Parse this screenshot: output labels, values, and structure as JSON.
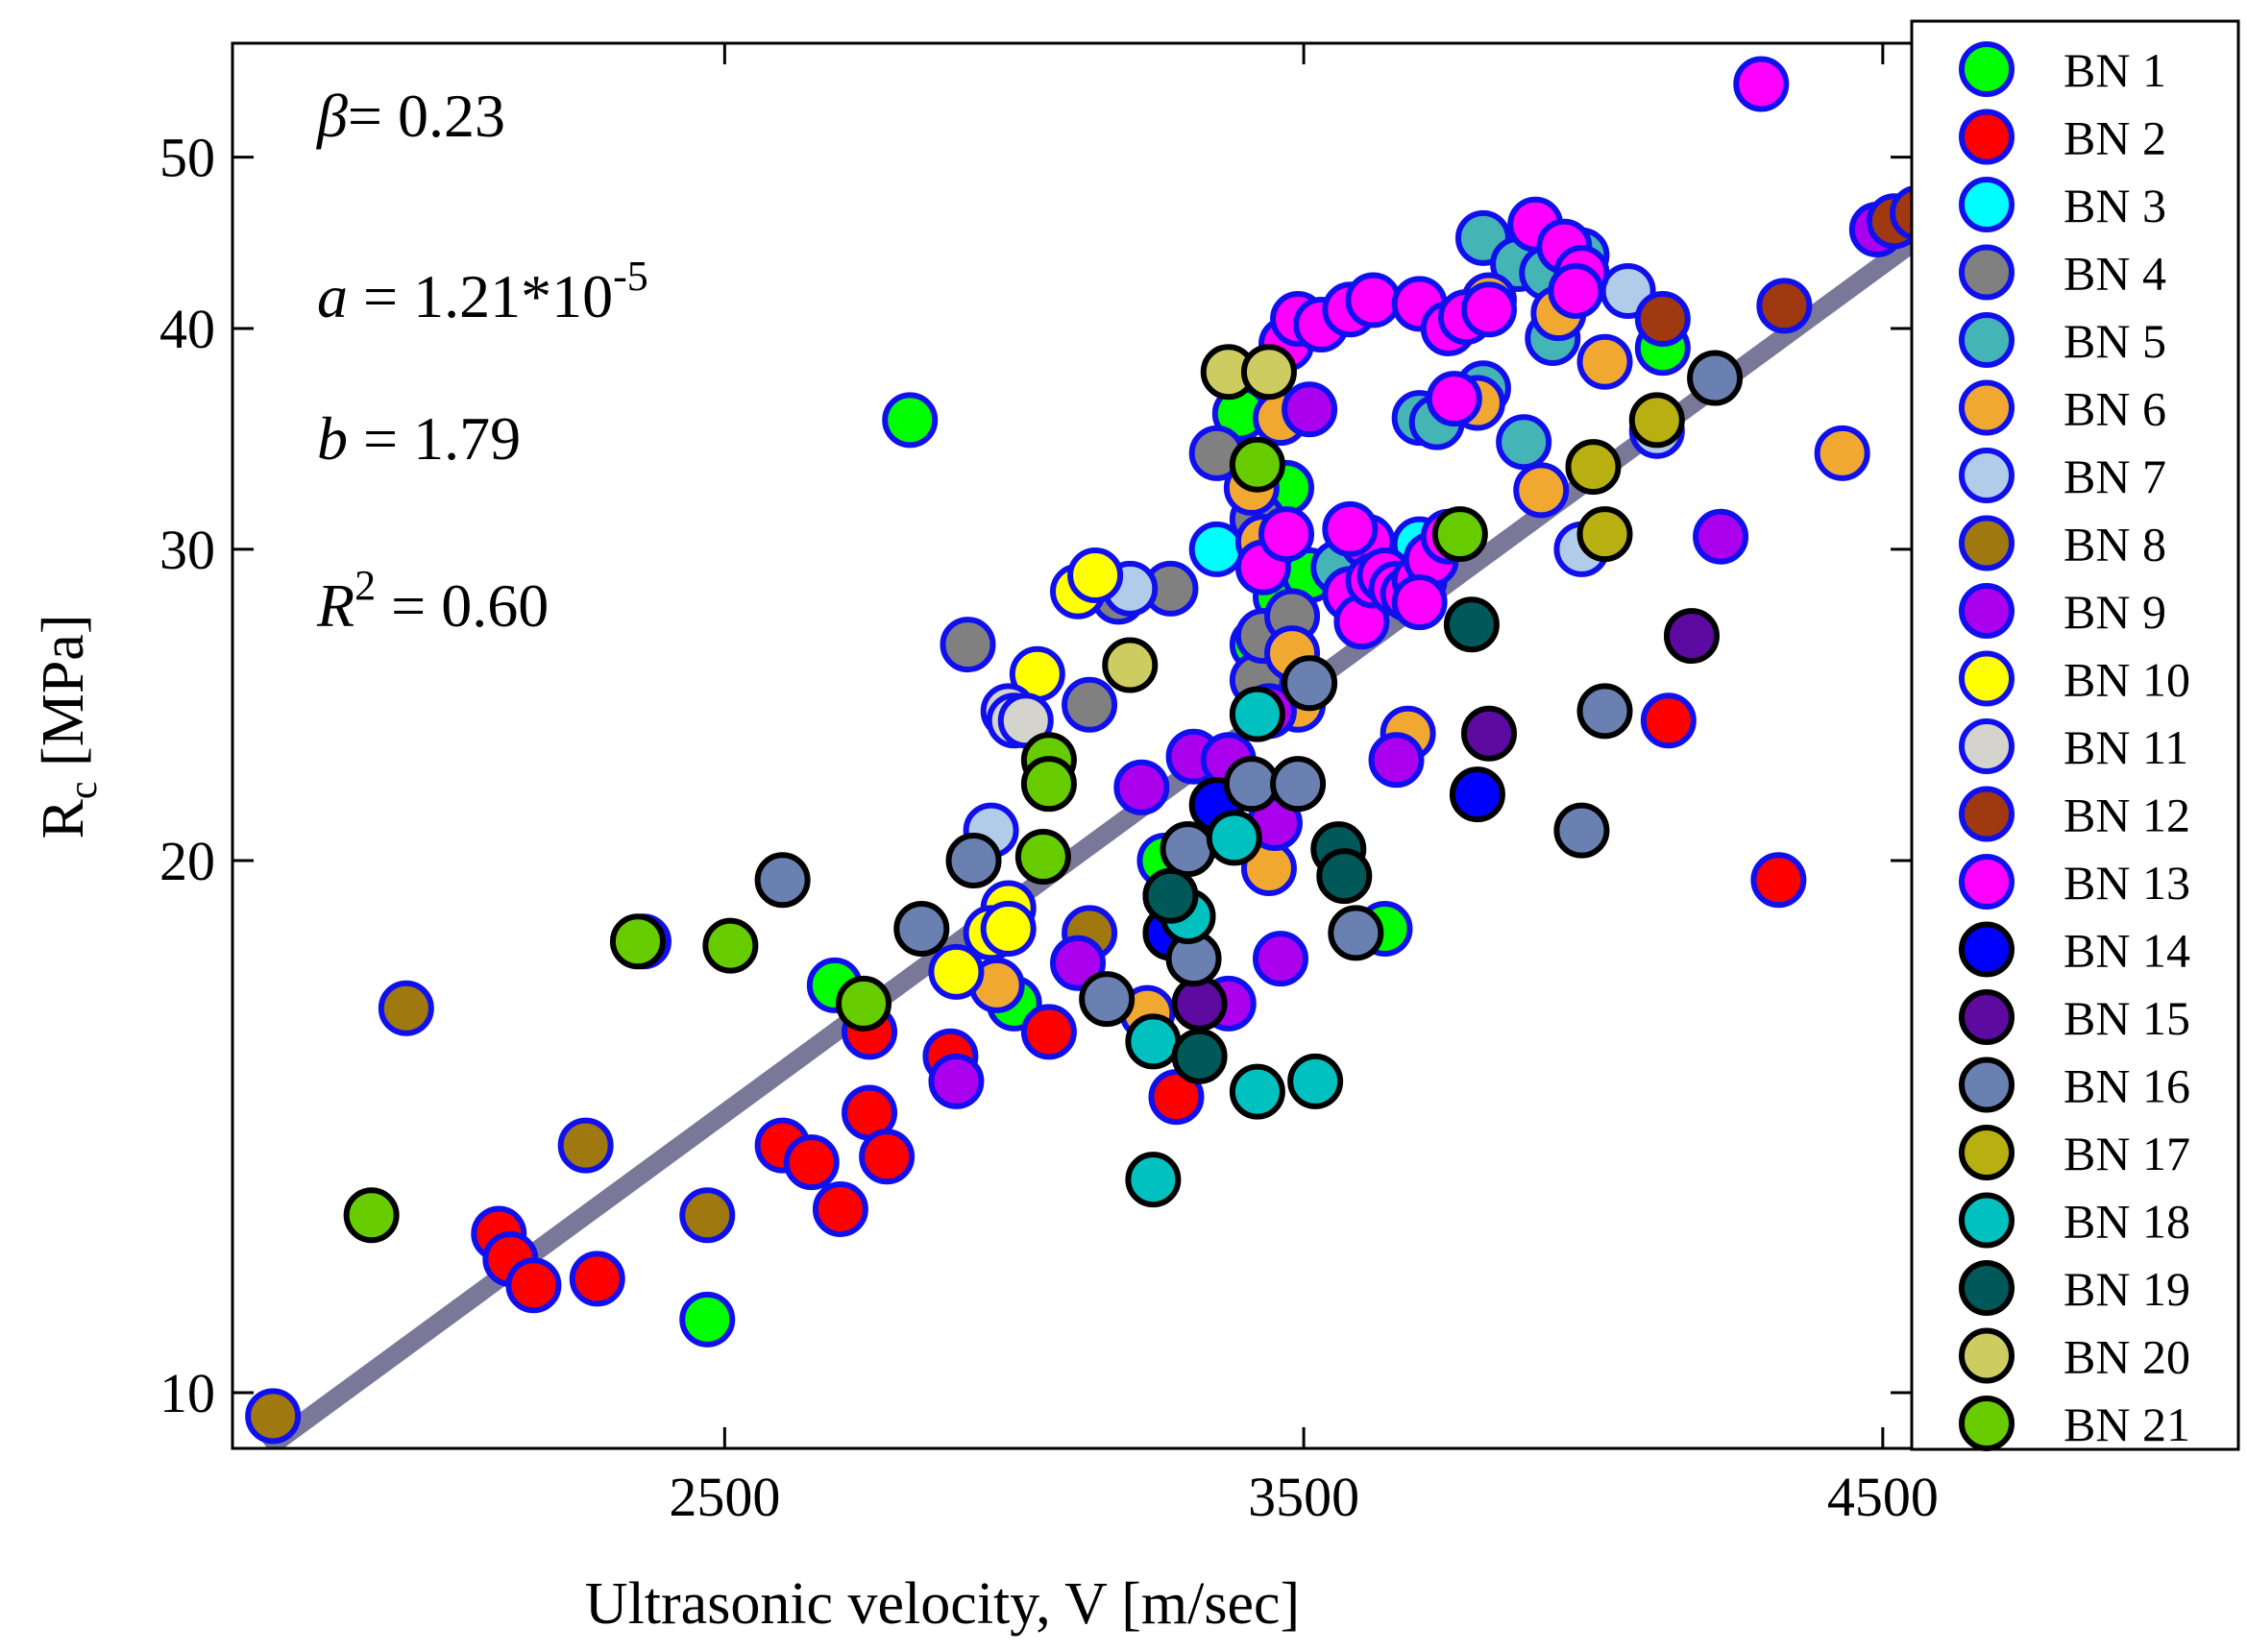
{
  "chart_data": {
    "type": "scatter",
    "xlabel": "Ultrasonic velocity, V [m/sec]",
    "ylabel": {
      "main": "R",
      "sub": "c",
      "unit": " [MPa]"
    },
    "xlim": [
      1650,
      4550
    ],
    "ylim": [
      9.3,
      58
    ],
    "yscale": "log",
    "xticks": [
      2500,
      3500,
      4500
    ],
    "yticks": [
      10,
      20,
      30,
      40,
      50
    ],
    "annotations": {
      "beta": {
        "sym": "β",
        "text": "= 0.23"
      },
      "a": {
        "sym": "a",
        "text": " = 1.21*10",
        "exp": "-5"
      },
      "b": {
        "sym": "b",
        "text": " = 1.79"
      },
      "r2": {
        "sym": "R",
        "exp": "2",
        "text": " = 0.60"
      }
    },
    "fit": {
      "name": "power-law fit",
      "x": [
        1710,
        4550
      ],
      "y": [
        9.3,
        44.7
      ],
      "color": "#7a7898"
    },
    "legend_position": "right, outside plot",
    "series": [
      {
        "name": "BN 1",
        "color": "#00ff00",
        "edge": "#1010ee",
        "points": [
          [
            2820,
            35.5
          ],
          [
            2470,
            11
          ],
          [
            3390,
            35.8
          ],
          [
            2690,
            17
          ],
          [
            3000,
            16.6
          ],
          [
            3260,
            20
          ],
          [
            3300,
            20.3
          ],
          [
            3270,
            19.1
          ],
          [
            3420,
            26.5
          ],
          [
            3460,
            28.2
          ],
          [
            3470,
            32.5
          ],
          [
            3640,
            18.3
          ],
          [
            4120,
            39
          ],
          [
            3510,
            29
          ]
        ]
      },
      {
        "name": "BN 2",
        "color": "#ff0000",
        "edge": "#1010ee",
        "points": [
          [
            2110,
            12.3
          ],
          [
            2130,
            11.9
          ],
          [
            2170,
            11.5
          ],
          [
            2280,
            11.6
          ],
          [
            2600,
            13.8
          ],
          [
            2650,
            13.5
          ],
          [
            2700,
            12.7
          ],
          [
            2750,
            14.4
          ],
          [
            2780,
            13.6
          ],
          [
            2750,
            16
          ],
          [
            2890,
            15.5
          ],
          [
            3060,
            16
          ],
          [
            3280,
            14.7
          ],
          [
            4130,
            24
          ],
          [
            4320,
            19.5
          ]
        ]
      },
      {
        "name": "BN 3",
        "color": "#00ffff",
        "edge": "#1010ee",
        "points": [
          [
            3350,
            30
          ],
          [
            3700,
            30.2
          ]
        ]
      },
      {
        "name": "BN 4",
        "color": "#808080",
        "edge": "#1010ee",
        "points": [
          [
            2920,
            26.5
          ],
          [
            3180,
            28.2
          ],
          [
            3270,
            28.5
          ],
          [
            3350,
            34
          ],
          [
            3420,
            25.3
          ],
          [
            3430,
            26.8
          ],
          [
            3130,
            24.5
          ],
          [
            3420,
            31.2
          ],
          [
            3480,
            27.5
          ]
        ]
      },
      {
        "name": "BN 5",
        "color": "#44b4b4",
        "edge": "#1010ee",
        "points": [
          [
            3810,
            45
          ],
          [
            3870,
            43.5
          ],
          [
            3920,
            43
          ],
          [
            3980,
            44
          ],
          [
            3700,
            35.6
          ],
          [
            3730,
            35.4
          ],
          [
            3810,
            37
          ],
          [
            3930,
            39.5
          ],
          [
            3600,
            30
          ],
          [
            3560,
            29.3
          ],
          [
            3880,
            34.5
          ]
        ]
      },
      {
        "name": "BN 6",
        "color": "#f0a830",
        "edge": "#1010ee",
        "points": [
          [
            3460,
            35.6
          ],
          [
            3410,
            32.5
          ],
          [
            3430,
            30.3
          ],
          [
            3480,
            26.2
          ],
          [
            3490,
            24.5
          ],
          [
            3440,
            19.8
          ],
          [
            3680,
            23.6
          ],
          [
            3800,
            36.3
          ],
          [
            3910,
            32.4
          ],
          [
            4020,
            38.3
          ],
          [
            4430,
            34
          ],
          [
            2970,
            17
          ],
          [
            3230,
            16.4
          ],
          [
            3820,
            41.5
          ],
          [
            3940,
            40.8
          ]
        ]
      },
      {
        "name": "BN 7",
        "color": "#b0cce8",
        "edge": "#1010ee",
        "points": [
          [
            2960,
            20.8
          ],
          [
            3200,
            28.5
          ],
          [
            3980,
            30
          ],
          [
            4110,
            35
          ],
          [
            4060,
            42
          ]
        ]
      },
      {
        "name": "BN 8",
        "color": "#a07810",
        "edge": "#1010ee",
        "points": [
          [
            1720,
            9.7
          ],
          [
            1950,
            16.5
          ],
          [
            2260,
            13.8
          ],
          [
            2360,
            18
          ],
          [
            2470,
            12.6
          ],
          [
            3130,
            18.2
          ]
        ]
      },
      {
        "name": "BN 9",
        "color": "#aa00ee",
        "edge": "#1010ee",
        "points": [
          [
            2900,
            15
          ],
          [
            3110,
            17.5
          ],
          [
            3220,
            22
          ],
          [
            3310,
            22.9
          ],
          [
            3370,
            22.8
          ],
          [
            3440,
            24.3
          ],
          [
            3450,
            21
          ],
          [
            3460,
            17.6
          ],
          [
            3370,
            16.6
          ],
          [
            3510,
            36
          ],
          [
            3660,
            22.8
          ],
          [
            4220,
            30.5
          ],
          [
            4490,
            45.5
          ]
        ]
      },
      {
        "name": "BN 10",
        "color": "#ffff00",
        "edge": "#1010ee",
        "points": [
          [
            2900,
            17.3
          ],
          [
            2990,
            18.8
          ],
          [
            2960,
            18.2
          ],
          [
            2990,
            18.3
          ],
          [
            3040,
            25.5
          ],
          [
            3110,
            28.4
          ],
          [
            3140,
            29
          ]
        ]
      },
      {
        "name": "BN 11",
        "color": "#d4d4cc",
        "edge": "#1010ee",
        "points": [
          [
            2990,
            24.3
          ],
          [
            3000,
            24
          ],
          [
            3020,
            24
          ]
        ]
      },
      {
        "name": "BN 12",
        "color": "#a03810",
        "edge": "#1010ee",
        "points": [
          [
            4120,
            40.5
          ],
          [
            4330,
            41.2
          ],
          [
            4520,
            46
          ],
          [
            4560,
            46.5
          ]
        ]
      },
      {
        "name": "BN 13",
        "color": "#ff00ff",
        "edge": "#1010ee",
        "points": [
          [
            4290,
            55
          ],
          [
            3470,
            39.2
          ],
          [
            3490,
            40.5
          ],
          [
            3530,
            40.2
          ],
          [
            3580,
            41
          ],
          [
            3620,
            41.5
          ],
          [
            3700,
            41.3
          ],
          [
            3750,
            40
          ],
          [
            3780,
            40.6
          ],
          [
            3820,
            41
          ],
          [
            3900,
            45.8
          ],
          [
            3950,
            44.5
          ],
          [
            3980,
            43
          ],
          [
            3970,
            42
          ],
          [
            3430,
            29.3
          ],
          [
            3470,
            30.6
          ],
          [
            3580,
            28.3
          ],
          [
            3600,
            27.3
          ],
          [
            3610,
            30.3
          ],
          [
            3620,
            28.8
          ],
          [
            3640,
            29
          ],
          [
            3660,
            28.5
          ],
          [
            3680,
            28.3
          ],
          [
            3700,
            28.8
          ],
          [
            3720,
            29.6
          ],
          [
            3750,
            30.5
          ],
          [
            3760,
            36.5
          ],
          [
            3580,
            30.8
          ],
          [
            3700,
            28
          ]
        ]
      },
      {
        "name": "BN 14",
        "color": "#0000ff",
        "edge": "#000000",
        "points": [
          [
            3270,
            18.2
          ],
          [
            3350,
            21.5
          ],
          [
            3800,
            21.8
          ]
        ]
      },
      {
        "name": "BN 15",
        "color": "#5c0aa0",
        "edge": "#000000",
        "points": [
          [
            3320,
            16.6
          ],
          [
            3820,
            23.6
          ],
          [
            4170,
            26.8
          ]
        ]
      },
      {
        "name": "BN 16",
        "color": "#6a80b0",
        "edge": "#000000",
        "points": [
          [
            2600,
            19.5
          ],
          [
            2840,
            18.3
          ],
          [
            2930,
            20
          ],
          [
            3160,
            16.7
          ],
          [
            3310,
            17.6
          ],
          [
            3300,
            20.3
          ],
          [
            3410,
            22.1
          ],
          [
            3490,
            22.1
          ],
          [
            3510,
            25.2
          ],
          [
            3590,
            18.2
          ],
          [
            3980,
            20.8
          ],
          [
            4020,
            24.3
          ],
          [
            4210,
            37.5
          ]
        ]
      },
      {
        "name": "BN 17",
        "color": "#b8b010",
        "edge": "#000000",
        "points": [
          [
            4000,
            33.4
          ],
          [
            4020,
            30.6
          ],
          [
            4110,
            35.5
          ]
        ]
      },
      {
        "name": "BN 18",
        "color": "#00c0c0",
        "edge": "#000000",
        "points": [
          [
            3240,
            13.2
          ],
          [
            3240,
            15.8
          ],
          [
            3300,
            18.6
          ],
          [
            3380,
            20.6
          ],
          [
            3420,
            24.2
          ],
          [
            3420,
            14.8
          ],
          [
            3520,
            15
          ]
        ]
      },
      {
        "name": "BN 19",
        "color": "#005858",
        "edge": "#000000",
        "points": [
          [
            3270,
            19.1
          ],
          [
            3320,
            15.5
          ],
          [
            3560,
            20.3
          ],
          [
            3570,
            19.6
          ],
          [
            3790,
            27.2
          ]
        ]
      },
      {
        "name": "BN 20",
        "color": "#cccc60",
        "edge": "#000000",
        "points": [
          [
            3200,
            25.8
          ],
          [
            3370,
            37.8
          ],
          [
            3440,
            37.8
          ]
        ]
      },
      {
        "name": "BN 21",
        "color": "#66cc00",
        "edge": "#000000",
        "points": [
          [
            1890,
            12.6
          ],
          [
            2350,
            18
          ],
          [
            2510,
            17.9
          ],
          [
            2740,
            16.6
          ],
          [
            3050,
            20.1
          ],
          [
            3060,
            22.8
          ],
          [
            3060,
            22.1
          ],
          [
            3420,
            33.5
          ],
          [
            3770,
            30.6
          ]
        ]
      }
    ]
  }
}
